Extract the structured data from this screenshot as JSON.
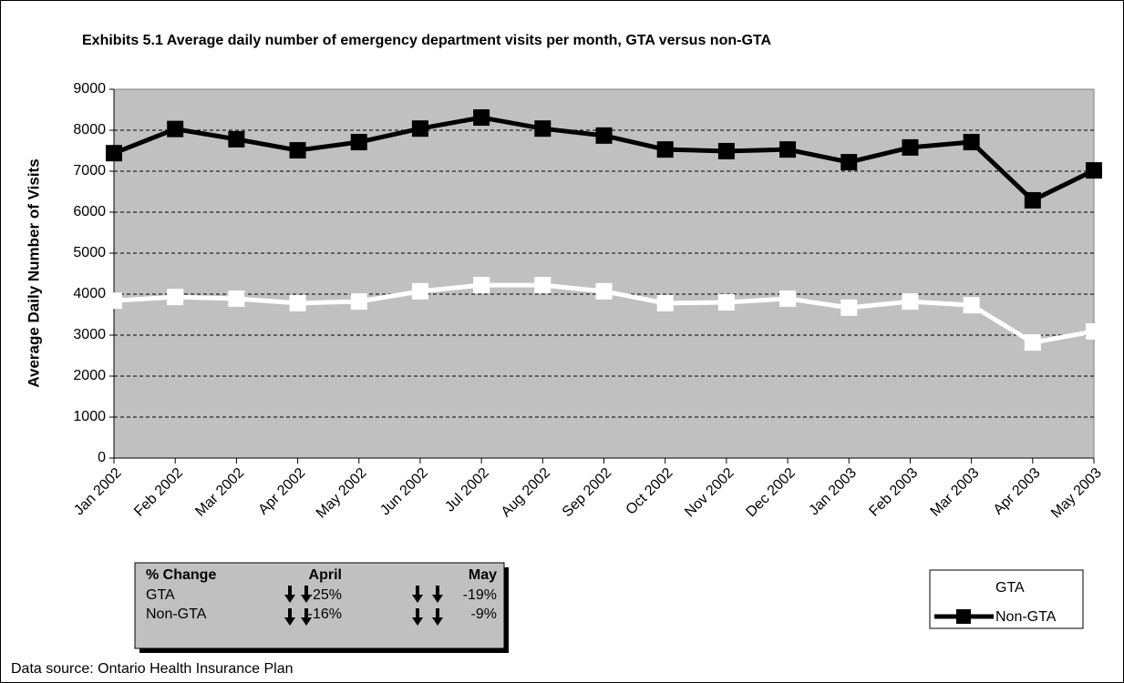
{
  "chart_data": {
    "type": "line",
    "title": "Exhibits 5.1 Average daily number of emergency department visits per month, GTA versus non-GTA",
    "y_label": "Average Daily Number of Visits",
    "categories": [
      "Jan 2002",
      "Feb 2002",
      "Mar 2002",
      "Apr 2002",
      "May 2002",
      "Jun 2002",
      "Jul 2002",
      "Aug 2002",
      "Sep 2002",
      "Oct 2002",
      "Nov 2002",
      "Dec 2002",
      "Jan 2003",
      "Feb 2003",
      "Mar 2003",
      "Apr 2003",
      "May 2003"
    ],
    "series": [
      {
        "name": "GTA",
        "color": "#ffffff",
        "values": [
          3840,
          3930,
          3890,
          3780,
          3820,
          4070,
          4220,
          4220,
          4070,
          3780,
          3800,
          3890,
          3670,
          3820,
          3730,
          2820,
          3090
        ]
      },
      {
        "name": "Non-GTA",
        "color": "#000000",
        "values": [
          7440,
          8030,
          7780,
          7510,
          7710,
          8040,
          8310,
          8040,
          7870,
          7530,
          7490,
          7530,
          7220,
          7580,
          7710,
          6290,
          7020
        ]
      }
    ],
    "ylim": [
      0,
      9000
    ],
    "yticks": [
      0,
      1000,
      2000,
      3000,
      4000,
      5000,
      6000,
      7000,
      8000,
      9000
    ],
    "grid": true,
    "plot_background": "#c0c0c0",
    "legend": "bottom-right",
    "change_table": {
      "header": [
        "% Change",
        "April",
        "May"
      ],
      "rows": [
        [
          "GTA",
          "-25%",
          "-19%"
        ],
        [
          "Non-GTA",
          "-16%",
          "-9%"
        ]
      ]
    },
    "source": "Data source: Ontario Health Insurance Plan"
  }
}
